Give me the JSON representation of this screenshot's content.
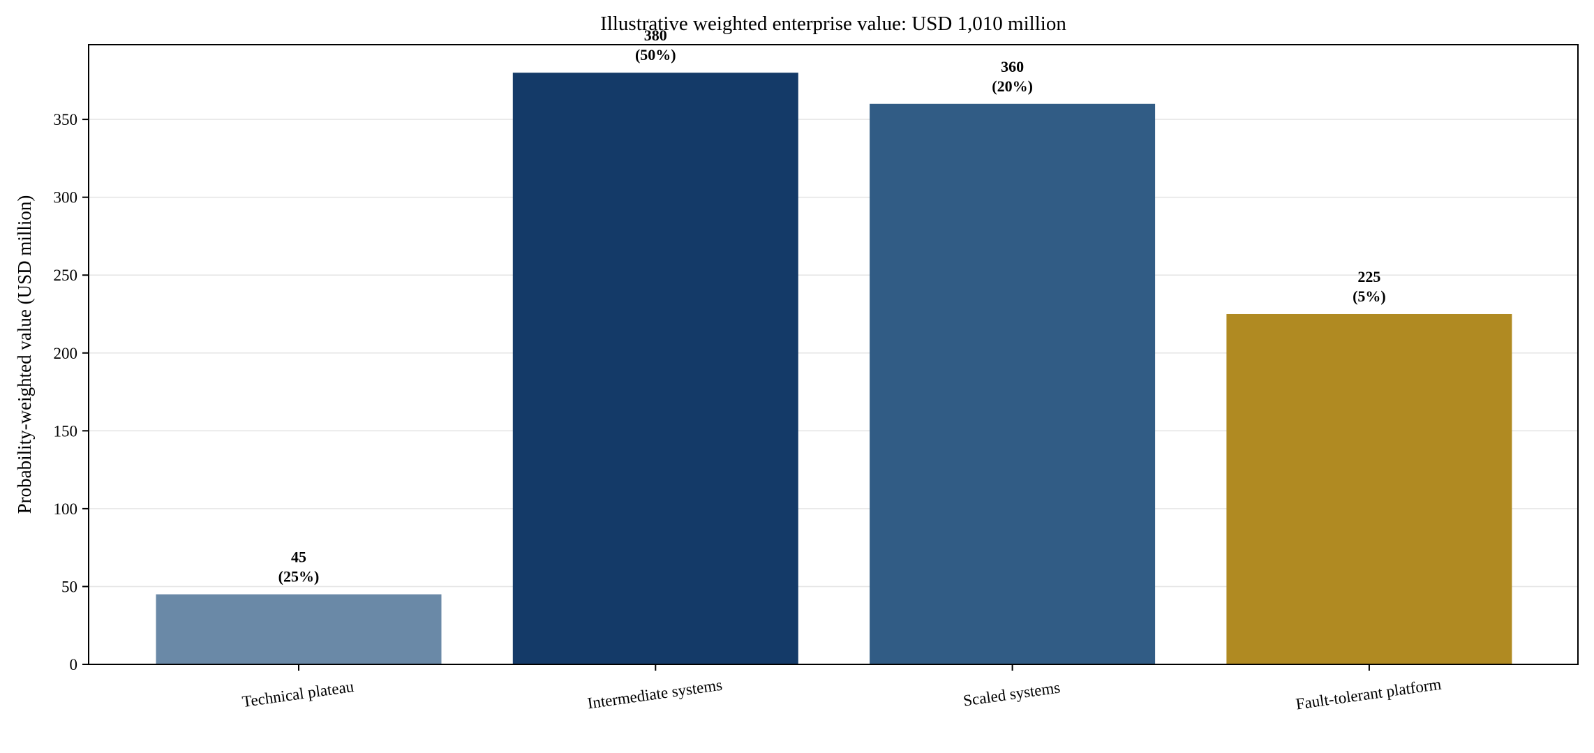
{
  "chart_data": {
    "type": "bar",
    "title": "Illustrative weighted enterprise value: USD 1,010 million",
    "xlabel": "",
    "ylabel": "Probability-weighted value (USD million)",
    "categories": [
      "Technical plateau",
      "Intermediate systems",
      "Scaled systems",
      "Fault-tolerant platform"
    ],
    "values": [
      45,
      380,
      360,
      225
    ],
    "probabilities": [
      "25%",
      "50%",
      "20%",
      "5%"
    ],
    "data_labels": [
      [
        "45",
        "(25%)"
      ],
      [
        "380",
        "(50%)"
      ],
      [
        "360",
        "(20%)"
      ],
      [
        "225",
        "(5%)"
      ]
    ],
    "colors": [
      "#6a89a7",
      "#143a68",
      "#315c85",
      "#b08a22"
    ],
    "ylim": [
      0,
      398
    ],
    "yticks": [
      0,
      50,
      100,
      150,
      200,
      250,
      300,
      350
    ],
    "grid": "horizontal",
    "legend": "none"
  }
}
